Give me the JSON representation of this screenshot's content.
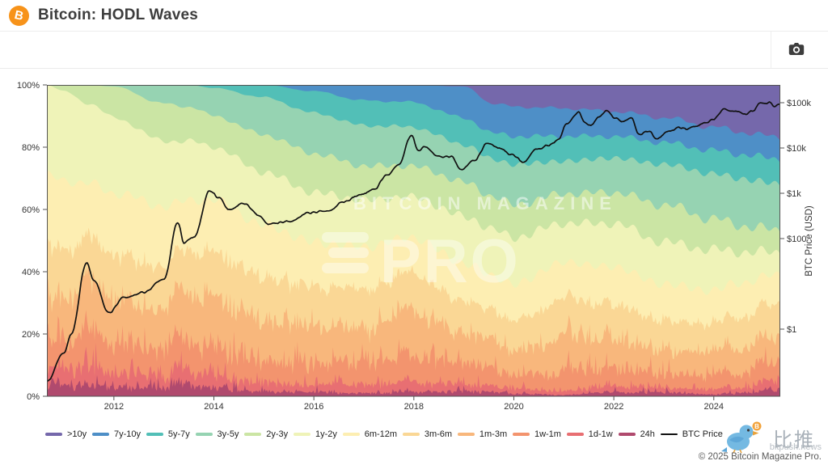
{
  "header": {
    "title": "Bitcoin: HODL Waves",
    "logo_letter": "B"
  },
  "toolbar": {
    "camera_icon": "camera"
  },
  "chart_data": {
    "type": "area",
    "subtype": "stacked-100pct-hodl-waves-with-log-price-line",
    "title": "Bitcoin: HODL Waves",
    "x_axis": {
      "range": [
        2010.66,
        2025.33
      ],
      "tick_values": [
        2012,
        2014,
        2016,
        2018,
        2020,
        2022,
        2024
      ],
      "tick_labels": [
        "2012",
        "2014",
        "2016",
        "2018",
        "2020",
        "2022",
        "2024"
      ]
    },
    "y_left": {
      "range": [
        0,
        100
      ],
      "tick_values": [
        0,
        20,
        40,
        60,
        80,
        100
      ],
      "tick_labels": [
        "0%",
        "20%",
        "40%",
        "60%",
        "80%",
        "100%"
      ]
    },
    "y_right": {
      "label": "BTC Price (USD)",
      "scale": "log",
      "tick_values": [
        1,
        100,
        1000,
        10000,
        100000
      ],
      "tick_labels": [
        "$1",
        "$100",
        "$1k",
        "$10k",
        "$100k"
      ]
    },
    "bands": [
      {
        "label": ">10y",
        "color": "#7568ab"
      },
      {
        "label": "7y-10y",
        "color": "#4e8fc7"
      },
      {
        "label": "5y-7y",
        "color": "#52bfb7"
      },
      {
        "label": "3y-5y",
        "color": "#96d3b2"
      },
      {
        "label": "2y-3y",
        "color": "#cbe5a4"
      },
      {
        "label": "1y-2y",
        "color": "#eff3b8"
      },
      {
        "label": "6m-12m",
        "color": "#fdeeb2"
      },
      {
        "label": "3m-6m",
        "color": "#fad795"
      },
      {
        "label": "1m-3m",
        "color": "#f8b77c"
      },
      {
        "label": "1w-1m",
        "color": "#f3946e"
      },
      {
        "label": "1d-1w",
        "color": "#e86f72"
      },
      {
        "label": "24h",
        "color": "#b04a6e"
      }
    ],
    "keyframes": [
      {
        "t": 2010.66,
        "values": [
          0,
          0,
          0,
          0,
          0,
          30,
          24,
          16,
          14,
          8,
          4.5,
          3.5
        ]
      },
      {
        "t": 2011.0,
        "values": [
          0,
          0,
          0,
          0,
          2,
          28,
          23,
          16,
          14,
          9,
          4.8,
          3.2
        ]
      },
      {
        "t": 2011.5,
        "values": [
          0,
          0,
          0,
          0,
          6,
          26,
          20,
          15,
          15,
          10,
          5,
          3
        ]
      },
      {
        "t": 2012.0,
        "values": [
          0,
          0,
          0,
          0.5,
          10,
          24,
          21,
          15,
          14,
          8.5,
          4.2,
          2.8
        ]
      },
      {
        "t": 2013.0,
        "values": [
          0,
          0,
          0,
          6,
          12,
          21,
          20,
          14,
          13,
          7.5,
          3.8,
          2.7
        ]
      },
      {
        "t": 2013.5,
        "values": [
          0,
          0,
          0,
          7,
          11,
          19,
          18,
          14,
          15,
          8.5,
          4,
          3.5
        ]
      },
      {
        "t": 2014.0,
        "values": [
          0,
          0,
          1,
          9,
          10,
          17,
          19,
          15,
          15,
          8,
          3.6,
          2.4
        ]
      },
      {
        "t": 2015.0,
        "values": [
          0,
          0,
          4,
          12,
          12,
          17,
          17.5,
          14,
          12.5,
          7,
          2.6,
          1.4
        ]
      },
      {
        "t": 2016.0,
        "values": [
          0,
          2,
          7,
          13,
          12.5,
          16,
          15,
          12.5,
          12,
          6.5,
          2.2,
          1.3
        ]
      },
      {
        "t": 2017.0,
        "values": [
          0,
          5,
          8,
          13,
          11,
          15,
          14.5,
          13,
          10.5,
          6.5,
          2.5,
          1
        ]
      },
      {
        "t": 2017.95,
        "values": [
          0,
          5.5,
          8,
          12.5,
          10,
          13,
          13,
          13,
          14,
          7,
          2.8,
          1.2
        ]
      },
      {
        "t": 2019.0,
        "values": [
          0.5,
          10,
          8.5,
          12,
          11,
          15,
          13,
          10.5,
          9.5,
          6,
          2.5,
          1.5
        ]
      },
      {
        "t": 2019.6,
        "values": [
          6,
          9.5,
          8.5,
          12,
          10.5,
          15,
          12.5,
          10,
          8.5,
          4.5,
          1.8,
          1.2
        ]
      },
      {
        "t": 2020.0,
        "values": [
          7,
          9.5,
          9,
          13,
          10.5,
          15,
          12,
          9.5,
          7.5,
          4.5,
          1.7,
          0.8
        ]
      },
      {
        "t": 2021.0,
        "values": [
          7.5,
          9,
          8,
          10.5,
          9.5,
          12.5,
          13,
          12.5,
          10.5,
          5.5,
          1.1,
          0.4
        ]
      },
      {
        "t": 2022.0,
        "values": [
          8.5,
          8,
          7,
          11,
          10,
          14,
          13,
          11.5,
          9,
          5,
          1.7,
          1.3
        ]
      },
      {
        "t": 2023.0,
        "values": [
          10.5,
          8,
          7,
          13,
          12,
          13.5,
          12,
          9.5,
          7.5,
          4.5,
          1.3,
          1.2
        ]
      },
      {
        "t": 2024.0,
        "values": [
          13.5,
          7.5,
          7.5,
          14.5,
          10,
          13,
          11.5,
          9,
          7.5,
          4,
          1.5,
          0.5
        ]
      },
      {
        "t": 2024.5,
        "values": [
          15,
          7.2,
          7.8,
          15,
          8.5,
          10,
          12,
          10,
          8,
          4,
          1.5,
          1
        ]
      },
      {
        "t": 2025.33,
        "values": [
          17,
          7,
          8,
          15,
          7,
          7,
          10,
          11,
          8,
          5,
          3,
          2
        ]
      }
    ],
    "price_series": {
      "name": "BTC Price",
      "color": "#111111",
      "points": [
        [
          2010.66,
          0.07
        ],
        [
          2011.0,
          0.3
        ],
        [
          2011.15,
          0.8
        ],
        [
          2011.45,
          29
        ],
        [
          2011.6,
          12
        ],
        [
          2011.9,
          2.3
        ],
        [
          2012.2,
          5
        ],
        [
          2012.6,
          6.5
        ],
        [
          2013.0,
          13
        ],
        [
          2013.28,
          230
        ],
        [
          2013.4,
          80
        ],
        [
          2013.6,
          110
        ],
        [
          2013.92,
          1130
        ],
        [
          2014.1,
          800
        ],
        [
          2014.3,
          450
        ],
        [
          2014.6,
          600
        ],
        [
          2014.9,
          330
        ],
        [
          2015.1,
          210
        ],
        [
          2015.5,
          240
        ],
        [
          2015.9,
          370
        ],
        [
          2016.3,
          420
        ],
        [
          2016.6,
          650
        ],
        [
          2016.95,
          960
        ],
        [
          2017.2,
          1200
        ],
        [
          2017.45,
          2500
        ],
        [
          2017.7,
          4300
        ],
        [
          2017.95,
          19000
        ],
        [
          2018.1,
          8500
        ],
        [
          2018.2,
          11000
        ],
        [
          2018.5,
          6400
        ],
        [
          2018.75,
          6500
        ],
        [
          2018.95,
          3300
        ],
        [
          2019.2,
          5200
        ],
        [
          2019.48,
          13000
        ],
        [
          2019.7,
          9800
        ],
        [
          2019.95,
          7200
        ],
        [
          2020.2,
          4900
        ],
        [
          2020.45,
          9200
        ],
        [
          2020.7,
          11500
        ],
        [
          2020.9,
          15500
        ],
        [
          2021.05,
          33000
        ],
        [
          2021.3,
          62000
        ],
        [
          2021.42,
          36000
        ],
        [
          2021.55,
          31500
        ],
        [
          2021.7,
          47000
        ],
        [
          2021.87,
          67500
        ],
        [
          2022.0,
          46500
        ],
        [
          2022.2,
          38500
        ],
        [
          2022.35,
          45000
        ],
        [
          2022.5,
          20000
        ],
        [
          2022.7,
          23500
        ],
        [
          2022.87,
          15800
        ],
        [
          2023.1,
          23000
        ],
        [
          2023.3,
          28500
        ],
        [
          2023.45,
          26500
        ],
        [
          2023.65,
          29500
        ],
        [
          2023.85,
          37000
        ],
        [
          2024.0,
          43500
        ],
        [
          2024.2,
          71000
        ],
        [
          2024.35,
          63500
        ],
        [
          2024.5,
          65000
        ],
        [
          2024.62,
          55000
        ],
        [
          2024.8,
          68000
        ],
        [
          2024.92,
          97000
        ],
        [
          2025.05,
          94500
        ],
        [
          2025.12,
          104000
        ],
        [
          2025.22,
          83000
        ],
        [
          2025.33,
          95000
        ]
      ]
    },
    "watermark": {
      "line1": "BITCOIN MAGAZINE",
      "line2": "PRO"
    },
    "legend_price_label": "BTC Price"
  },
  "footer": {
    "bitpush_name": "比推",
    "bitpush_domain": "bitpush.news",
    "copyright": "© 2025 Bitcoin Magazine Pro."
  }
}
